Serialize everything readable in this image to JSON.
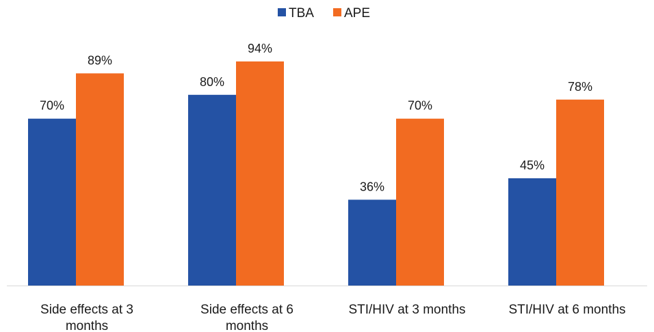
{
  "chart_data": {
    "type": "bar",
    "categories": [
      [
        "Side effects at 3",
        "months"
      ],
      [
        "Side effects at 6",
        "months"
      ],
      [
        "STI/HIV at 3 months"
      ],
      [
        "STI/HIV at 6 months"
      ]
    ],
    "series": [
      {
        "name": "TBA",
        "color": "#2452a4",
        "values": [
          70,
          80,
          36,
          45
        ]
      },
      {
        "name": "APE",
        "color": "#f26b21",
        "values": [
          89,
          94,
          70,
          78
        ]
      }
    ],
    "value_suffix": "%",
    "ylim": [
      0,
      100
    ],
    "grid": false,
    "legend": "top-center",
    "axis_color": "#d9d9d9"
  }
}
